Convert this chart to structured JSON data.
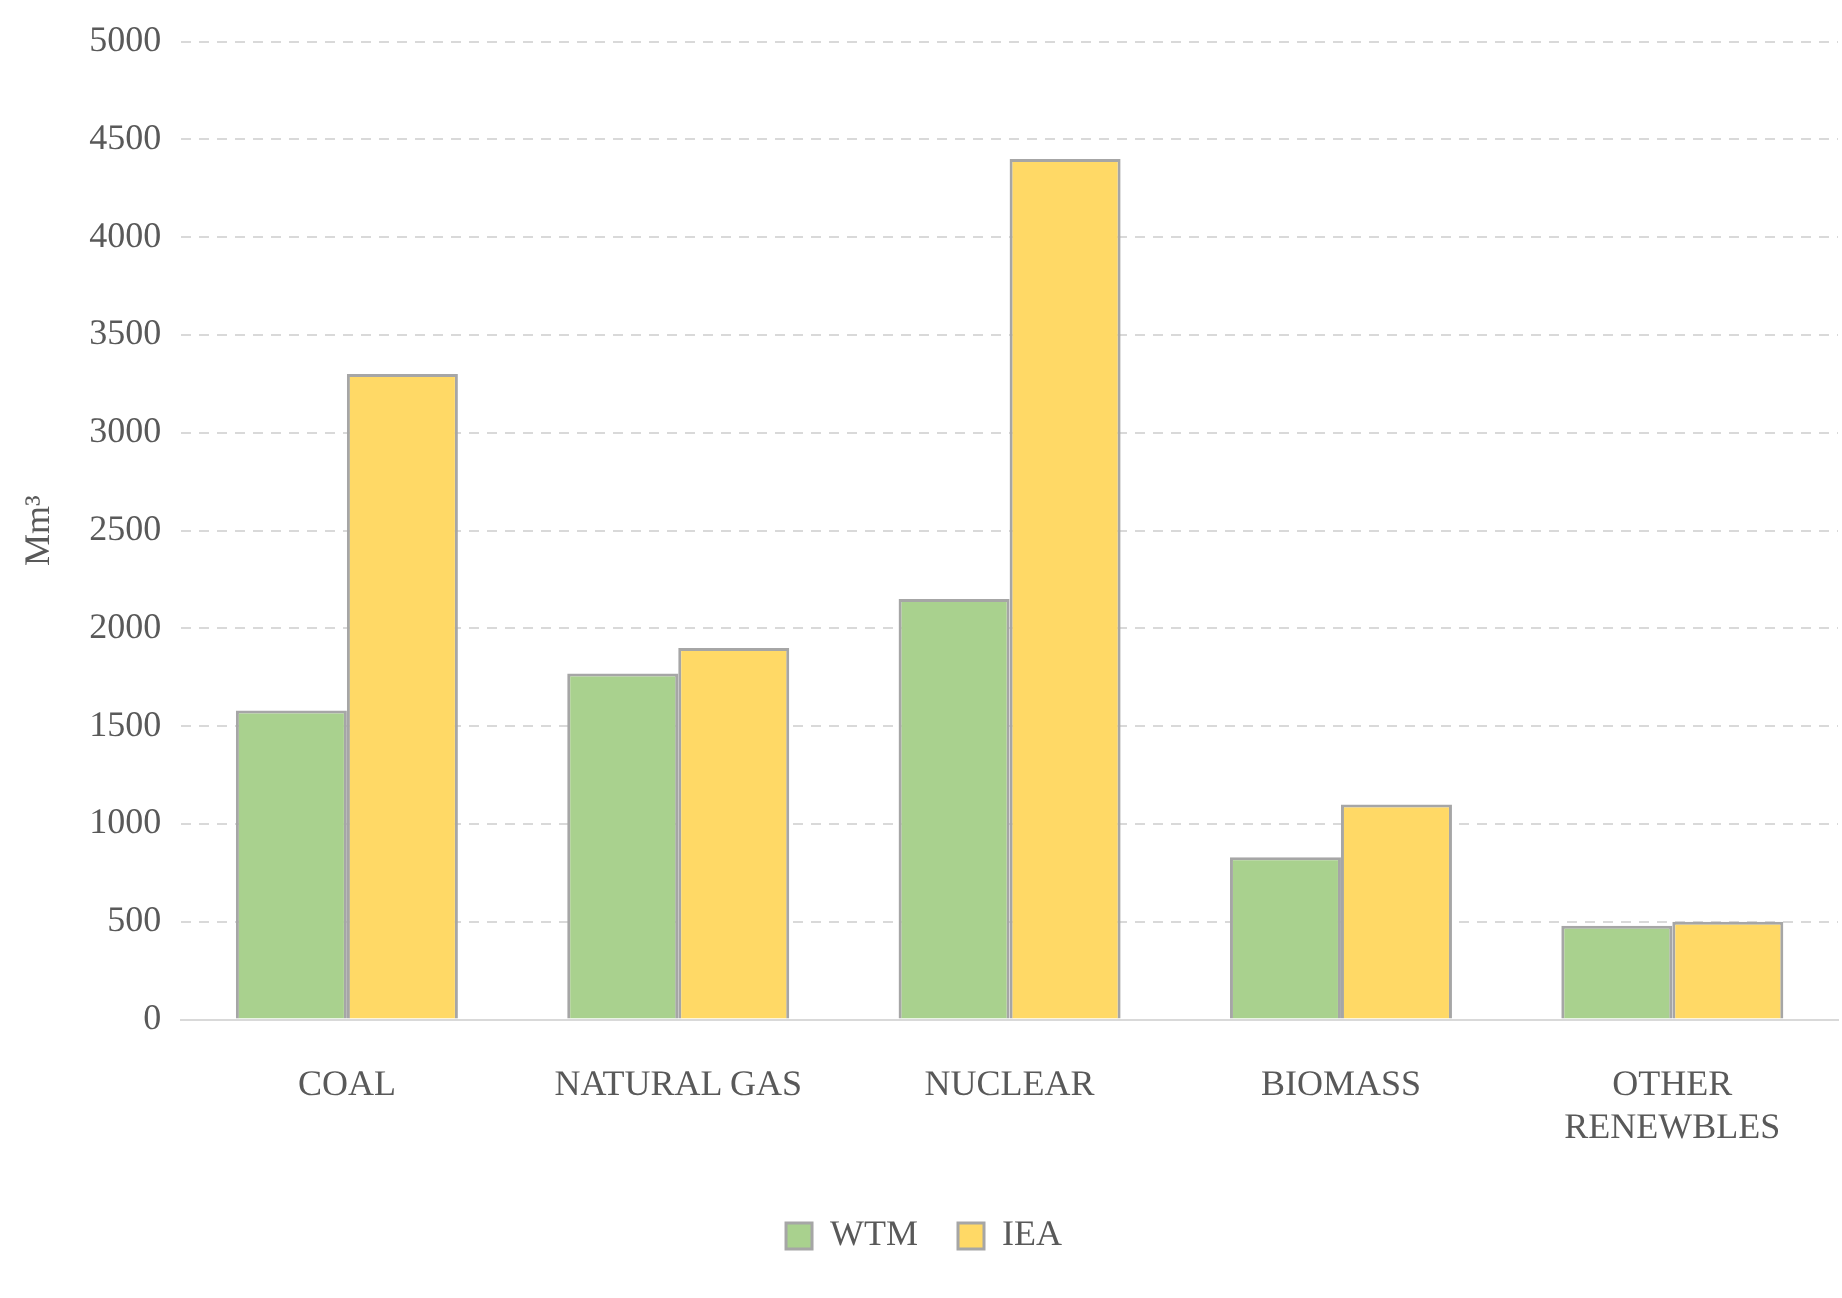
{
  "chart_data": {
    "type": "bar",
    "ylabel": "Mm³",
    "categories": [
      "COAL",
      "NATURAL GAS",
      "NUCLEAR",
      "BIOMASS",
      "OTHER RENEWBLES"
    ],
    "series": [
      {
        "name": "WTM",
        "color": "#a9d18e",
        "values": [
          1580,
          1770,
          2150,
          830,
          480
        ]
      },
      {
        "name": "IEA",
        "color": "#ffd966",
        "values": [
          3300,
          1900,
          4400,
          1100,
          500
        ]
      }
    ],
    "ylim": [
      0,
      5000
    ],
    "yticks": [
      0,
      500,
      1000,
      1500,
      2000,
      2500,
      3000,
      3500,
      4000,
      4500,
      5000
    ],
    "grid": "y",
    "legend": "bottom"
  }
}
